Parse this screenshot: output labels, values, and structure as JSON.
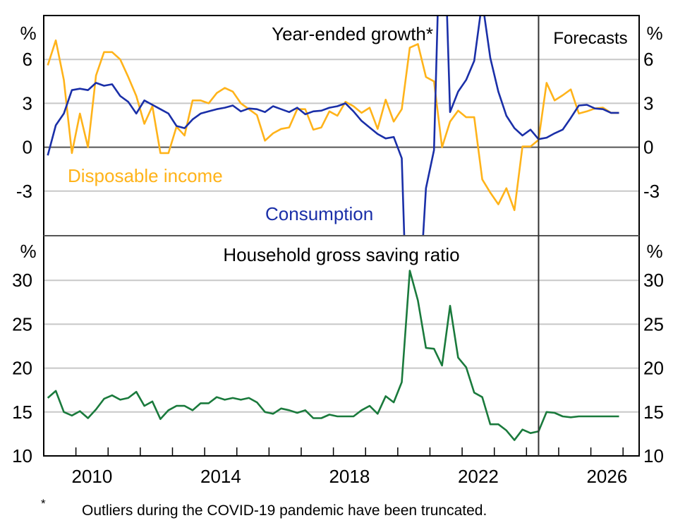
{
  "chart_data": [
    {
      "type": "line",
      "panel": "top",
      "title": "Year-ended growth*",
      "ylabel_left": "%",
      "ylabel_right": "%",
      "ylim": [
        -6,
        9
      ],
      "yticks": [
        -3,
        0,
        3,
        6
      ],
      "ytick_labels": [
        "-3",
        "0",
        "3",
        "6"
      ],
      "grid": true,
      "forecast_label": "Forecasts",
      "forecast_start": "2024-Q2",
      "x_start": "2009-Q1",
      "frequency": "quarterly",
      "series": [
        {
          "name": "Disposable income",
          "color": "#FFB31A",
          "label_position": "left-middle",
          "values": [
            5.6,
            7.3,
            4.6,
            -0.4,
            2.3,
            0.0,
            4.9,
            6.5,
            6.5,
            6.0,
            4.8,
            3.5,
            1.6,
            2.8,
            -0.4,
            -0.4,
            1.4,
            0.8,
            3.2,
            3.2,
            3.0,
            3.7,
            4.05,
            3.8,
            3.0,
            2.6,
            2.2,
            0.45,
            0.95,
            1.25,
            1.35,
            2.6,
            2.6,
            1.2,
            1.35,
            2.45,
            2.15,
            3.1,
            2.8,
            2.35,
            2.7,
            1.25,
            3.25,
            1.75,
            2.6,
            6.8,
            7.05,
            4.8,
            4.5,
            0.0,
            1.75,
            2.5,
            2.05,
            2.05,
            -2.2,
            -3.1,
            -3.9,
            -2.8,
            -4.3,
            0.05,
            0.05,
            0.5,
            4.4,
            3.2,
            3.55,
            3.95,
            2.3,
            2.45,
            2.65,
            2.7,
            2.35,
            2.35
          ]
        },
        {
          "name": "Consumption",
          "color": "#1A2FA8",
          "label_position": "bottom-middle",
          "values": [
            -0.56,
            1.5,
            2.3,
            3.9,
            4.0,
            3.9,
            4.4,
            4.2,
            4.3,
            3.5,
            3.1,
            2.3,
            3.2,
            2.9,
            2.6,
            2.3,
            1.45,
            1.3,
            1.9,
            2.3,
            2.45,
            2.6,
            2.7,
            2.85,
            2.45,
            2.65,
            2.6,
            2.4,
            2.8,
            2.6,
            2.4,
            2.7,
            2.25,
            2.45,
            2.5,
            2.7,
            2.8,
            3.0,
            2.45,
            1.8,
            1.35,
            0.9,
            0.6,
            0.7,
            -0.75,
            -18.0,
            -12.0,
            -2.8,
            -0.2,
            20.0,
            2.4,
            3.8,
            4.6,
            5.9,
            10.0,
            6.1,
            3.8,
            2.15,
            1.3,
            0.8,
            1.2,
            0.55,
            0.65,
            0.95,
            1.2,
            2.0,
            2.85,
            2.9,
            2.65,
            2.6,
            2.35,
            2.35
          ]
        }
      ],
      "note": "Consumption outliers during COVID-19 truncated at panel edges"
    },
    {
      "type": "line",
      "panel": "bottom",
      "title": "Household gross saving ratio",
      "ylabel_left": "%",
      "ylabel_right": "%",
      "ylim": [
        10,
        35
      ],
      "yticks": [
        10,
        15,
        20,
        25,
        30
      ],
      "ytick_labels": [
        "10",
        "15",
        "20",
        "25",
        "30"
      ],
      "grid": true,
      "forecast_start": "2024-Q2",
      "x_start": "2009-Q1",
      "frequency": "quarterly",
      "series": [
        {
          "name": "Household gross saving ratio",
          "color": "#1A7A3C",
          "values": [
            16.6,
            17.4,
            15.0,
            14.6,
            15.1,
            14.3,
            15.3,
            16.5,
            16.9,
            16.4,
            16.6,
            17.3,
            15.7,
            16.2,
            14.2,
            15.2,
            15.7,
            15.7,
            15.2,
            16.0,
            16.0,
            16.7,
            16.4,
            16.6,
            16.4,
            16.6,
            16.1,
            15.0,
            14.8,
            15.4,
            15.2,
            14.9,
            15.2,
            14.3,
            14.3,
            14.7,
            14.5,
            14.5,
            14.5,
            15.2,
            15.7,
            14.8,
            16.8,
            16.1,
            18.4,
            31.1,
            27.7,
            22.3,
            22.2,
            20.3,
            27.1,
            21.2,
            20.1,
            17.2,
            16.7,
            13.6,
            13.6,
            12.9,
            11.8,
            13.0,
            12.6,
            12.8,
            15.0,
            14.9,
            14.5,
            14.4,
            14.5,
            14.5,
            14.5,
            14.5,
            14.5,
            14.5
          ]
        }
      ]
    }
  ],
  "xaxis": {
    "range_years": [
      2009.0,
      2027.5
    ],
    "tick_labels": [
      "2010",
      "2014",
      "2018",
      "2022",
      "2026"
    ]
  },
  "labels": {
    "top_title": "Year-ended growth*",
    "forecasts": "Forecasts",
    "disposable_income": "Disposable income",
    "consumption": "Consumption",
    "bottom_title": "Household gross saving ratio",
    "unit": "%"
  },
  "footnote": {
    "mark": "*",
    "text": "Outliers during the COVID-19 pandemic have been truncated."
  }
}
